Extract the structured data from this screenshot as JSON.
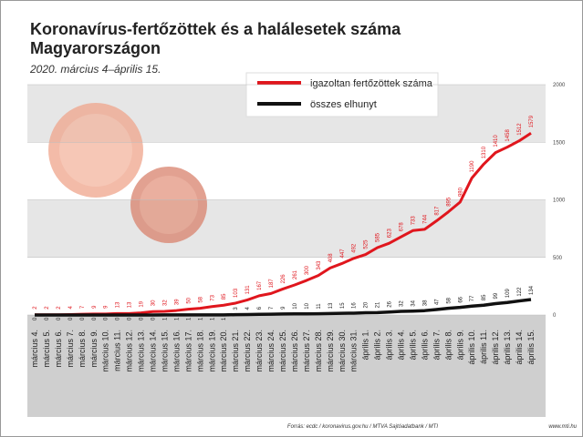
{
  "chart_data": {
    "type": "line",
    "title_lines": [
      "Koronavírus-fertőzöttek és a halálesetek száma",
      "Magyarországon"
    ],
    "subtitle": "2020. március 4–április 15.",
    "categories": [
      "március 4.",
      "március 5.",
      "március 6.",
      "március 7.",
      "március 8.",
      "március 9.",
      "március 10.",
      "március 11.",
      "március 12.",
      "március 13.",
      "március 14.",
      "március 15.",
      "március 16.",
      "március 17.",
      "március 18.",
      "március 19.",
      "március 20.",
      "március 21.",
      "március 22.",
      "március 23.",
      "március 24.",
      "március 25.",
      "március 26.",
      "március 27.",
      "március 28.",
      "március 29.",
      "március 30.",
      "március 31.",
      "április 1.",
      "április 2.",
      "április 3.",
      "április 4.",
      "április 5.",
      "április 6.",
      "április 7.",
      "április 8.",
      "április 9.",
      "április 10.",
      "április 11.",
      "április 12.",
      "április 13.",
      "április 14.",
      "április 15."
    ],
    "series": [
      {
        "name": "igazoltan fertőzöttek száma",
        "color": "#e0161d",
        "values": [
          2,
          2,
          2,
          4,
          7,
          9,
          9,
          13,
          13,
          19,
          30,
          32,
          39,
          50,
          58,
          73,
          85,
          103,
          131,
          167,
          187,
          226,
          261,
          300,
          343,
          408,
          447,
          492,
          525,
          585,
          623,
          678,
          733,
          744,
          817,
          895,
          980,
          1190,
          1310,
          1410,
          1458,
          1512,
          1579
        ]
      },
      {
        "name": "összes elhunyt",
        "color": "#111111",
        "values": [
          0,
          0,
          0,
          0,
          0,
          0,
          0,
          0,
          0,
          0,
          0,
          1,
          1,
          1,
          1,
          1,
          1,
          3,
          4,
          6,
          7,
          9,
          10,
          10,
          11,
          13,
          15,
          16,
          20,
          21,
          26,
          32,
          34,
          38,
          47,
          58,
          66,
          77,
          85,
          99,
          109,
          122,
          134
        ]
      }
    ],
    "ylim": [
      0,
      2000
    ],
    "yticks": [
      0,
      500,
      1000,
      1500,
      2000
    ],
    "source": "Forrás: ecdc / koronavirus.gov.hu / MTVA Sajtóadatbank / MTI",
    "website": "www.mti.hu"
  }
}
